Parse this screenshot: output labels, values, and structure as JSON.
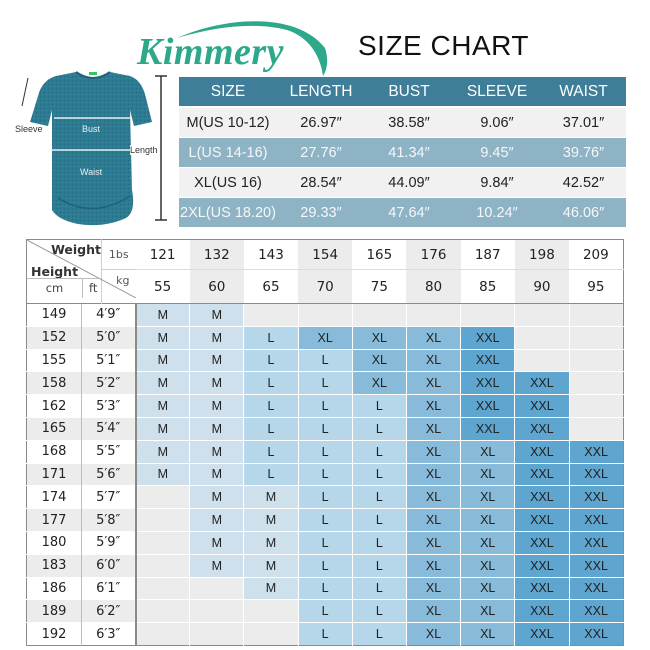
{
  "brand": {
    "name": "Kimmery",
    "color": "#2ea88a"
  },
  "title": "SIZE CHART",
  "illustration": {
    "labels": {
      "sleeve": "Sleeve",
      "bust": "Bust",
      "waist": "Waist",
      "length": "Length"
    },
    "shirt_color": "#2d7a93"
  },
  "measurements": {
    "headers": [
      "SIZE",
      "LENGTH",
      "BUST",
      "SLEEVE",
      "WAIST"
    ],
    "rows": [
      [
        "M(US 10-12)",
        "26.97″",
        "38.58″",
        "9.06″",
        "37.01″"
      ],
      [
        "L(US 14-16)",
        "27.76″",
        "41.34″",
        "9.45″",
        "39.76″"
      ],
      [
        "XL(US 16)",
        "28.54″",
        "44.09″",
        "9.84″",
        "42.52″"
      ],
      [
        "2XL(US 18.20)",
        "29.33″",
        "47.64″",
        "10.24″",
        "46.06″"
      ]
    ],
    "colors": {
      "header_bg": "#3e7e99",
      "light_row": "#f1f1f1",
      "dark_row": "#8db3c4"
    }
  },
  "size_table": {
    "corner": {
      "weight": "Weight",
      "height": "Height",
      "lbs": "1bs",
      "kg": "kg",
      "cm": "cm",
      "ft": "ft"
    },
    "lbs": [
      "121",
      "132",
      "143",
      "154",
      "165",
      "176",
      "187",
      "198",
      "209"
    ],
    "kg": [
      "55",
      "60",
      "65",
      "70",
      "75",
      "80",
      "85",
      "90",
      "95"
    ],
    "rows": [
      {
        "cm": "149",
        "ft": "4′9″",
        "sizes": [
          "M",
          "M",
          "",
          "",
          "",
          "",
          "",
          "",
          ""
        ]
      },
      {
        "cm": "152",
        "ft": "5′0″",
        "sizes": [
          "M",
          "M",
          "L",
          "XL",
          "XL",
          "XL",
          "XXL",
          "",
          ""
        ]
      },
      {
        "cm": "155",
        "ft": "5′1″",
        "sizes": [
          "M",
          "M",
          "L",
          "L",
          "XL",
          "XL",
          "XXL",
          "",
          ""
        ]
      },
      {
        "cm": "158",
        "ft": "5′2″",
        "sizes": [
          "M",
          "M",
          "L",
          "L",
          "XL",
          "XL",
          "XXL",
          "XXL",
          ""
        ]
      },
      {
        "cm": "162",
        "ft": "5′3″",
        "sizes": [
          "M",
          "M",
          "L",
          "L",
          "L",
          "XL",
          "XXL",
          "XXL",
          ""
        ]
      },
      {
        "cm": "165",
        "ft": "5′4″",
        "sizes": [
          "M",
          "M",
          "L",
          "L",
          "L",
          "XL",
          "XXL",
          "XXL",
          ""
        ]
      },
      {
        "cm": "168",
        "ft": "5′5″",
        "sizes": [
          "M",
          "M",
          "L",
          "L",
          "L",
          "XL",
          "XL",
          "XXL",
          "XXL"
        ]
      },
      {
        "cm": "171",
        "ft": "5′6″",
        "sizes": [
          "M",
          "M",
          "L",
          "L",
          "L",
          "XL",
          "XL",
          "XXL",
          "XXL"
        ]
      },
      {
        "cm": "174",
        "ft": "5′7″",
        "sizes": [
          "",
          "M",
          "M",
          "L",
          "L",
          "XL",
          "XL",
          "XXL",
          "XXL"
        ]
      },
      {
        "cm": "177",
        "ft": "5′8″",
        "sizes": [
          "",
          "M",
          "M",
          "L",
          "L",
          "XL",
          "XL",
          "XXL",
          "XXL"
        ]
      },
      {
        "cm": "180",
        "ft": "5′9″",
        "sizes": [
          "",
          "M",
          "M",
          "L",
          "L",
          "XL",
          "XL",
          "XXL",
          "XXL"
        ]
      },
      {
        "cm": "183",
        "ft": "6′0″",
        "sizes": [
          "",
          "M",
          "M",
          "L",
          "L",
          "XL",
          "XL",
          "XXL",
          "XXL"
        ]
      },
      {
        "cm": "186",
        "ft": "6′1″",
        "sizes": [
          "",
          "",
          "M",
          "L",
          "L",
          "XL",
          "XL",
          "XXL",
          "XXL"
        ]
      },
      {
        "cm": "189",
        "ft": "6′2″",
        "sizes": [
          "",
          "",
          "",
          "L",
          "L",
          "XL",
          "XL",
          "XXL",
          "XXL"
        ]
      },
      {
        "cm": "192",
        "ft": "6′3″",
        "sizes": [
          "",
          "",
          "",
          "L",
          "L",
          "XL",
          "XL",
          "XXL",
          "XXL"
        ]
      }
    ],
    "size_colors": {
      "M": "#cde0eb",
      "L": "#b6d6ea",
      "XL": "#88bbd9",
      "XXL": "#5ea5cf",
      "empty": "#ececec"
    }
  }
}
